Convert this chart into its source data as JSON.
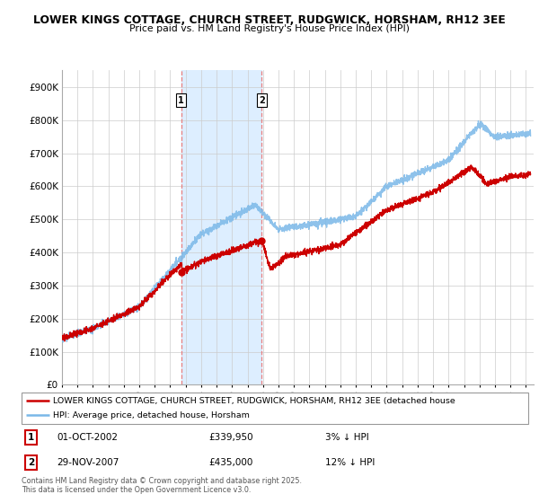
{
  "title1": "LOWER KINGS COTTAGE, CHURCH STREET, RUDGWICK, HORSHAM, RH12 3EE",
  "title2": "Price paid vs. HM Land Registry's House Price Index (HPI)",
  "legend_line1": "LOWER KINGS COTTAGE, CHURCH STREET, RUDGWICK, HORSHAM, RH12 3EE (detached house",
  "legend_line2": "HPI: Average price, detached house, Horsham",
  "sale1_date": "01-OCT-2002",
  "sale1_price": "£339,950",
  "sale1_hpi": "3% ↓ HPI",
  "sale2_date": "29-NOV-2007",
  "sale2_price": "£435,000",
  "sale2_hpi": "12% ↓ HPI",
  "footnote": "Contains HM Land Registry data © Crown copyright and database right 2025.\nThis data is licensed under the Open Government Licence v3.0.",
  "hpi_color": "#7ab8e8",
  "price_color": "#cc0000",
  "shade_color": "#ddeeff",
  "bg_color": "#ffffff",
  "sale1_x_year": 2002.75,
  "sale2_x_year": 2007.92,
  "xmin": 1995.0,
  "xmax": 2025.5,
  "ymin": 0,
  "ymax": 950000
}
